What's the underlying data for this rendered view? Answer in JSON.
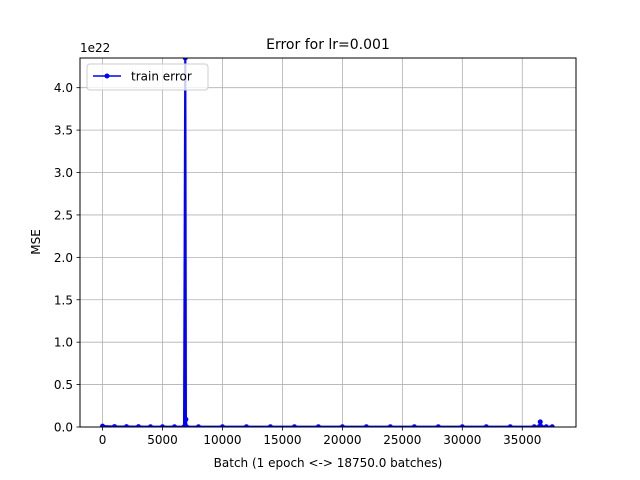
{
  "chart_data": {
    "type": "line",
    "title": "Error for lr=0.001",
    "xlabel": "Batch (1 epoch <-> 18750.0 batches)",
    "ylabel": "MSE",
    "y_offset_label": "1e22",
    "xlim": [
      -1880,
      39480
    ],
    "ylim": [
      0,
      4.35
    ],
    "x_ticks": [
      0,
      5000,
      10000,
      15000,
      20000,
      25000,
      30000,
      35000
    ],
    "x_tick_labels": [
      "0",
      "5000",
      "10000",
      "15000",
      "20000",
      "25000",
      "30000",
      "35000"
    ],
    "y_ticks": [
      0.0,
      0.5,
      1.0,
      1.5,
      2.0,
      2.5,
      3.0,
      3.5,
      4.0
    ],
    "y_tick_labels": [
      "0.0",
      "0.5",
      "1.0",
      "1.5",
      "2.0",
      "2.5",
      "3.0",
      "3.5",
      "4.0"
    ],
    "grid": true,
    "legend_position": "top-left",
    "series": [
      {
        "name": "train error",
        "color": "#0000ff",
        "x": [
          0,
          1000,
          2000,
          3000,
          4000,
          5000,
          6000,
          6800,
          6900,
          6950,
          7000,
          8000,
          10000,
          12000,
          14000,
          16000,
          18000,
          20000,
          22000,
          24000,
          26000,
          28000,
          30000,
          32000,
          34000,
          36000,
          36400,
          36500,
          36600,
          37000,
          37500
        ],
        "y": [
          0.01,
          0.005,
          0.004,
          0.004,
          0.003,
          0.003,
          0.003,
          0.003,
          4.35,
          0.09,
          0.003,
          0.003,
          0.003,
          0.003,
          0.003,
          0.003,
          0.003,
          0.003,
          0.003,
          0.003,
          0.003,
          0.003,
          0.003,
          0.003,
          0.003,
          0.003,
          0.003,
          0.06,
          0.003,
          0.003,
          0.003
        ]
      }
    ]
  }
}
